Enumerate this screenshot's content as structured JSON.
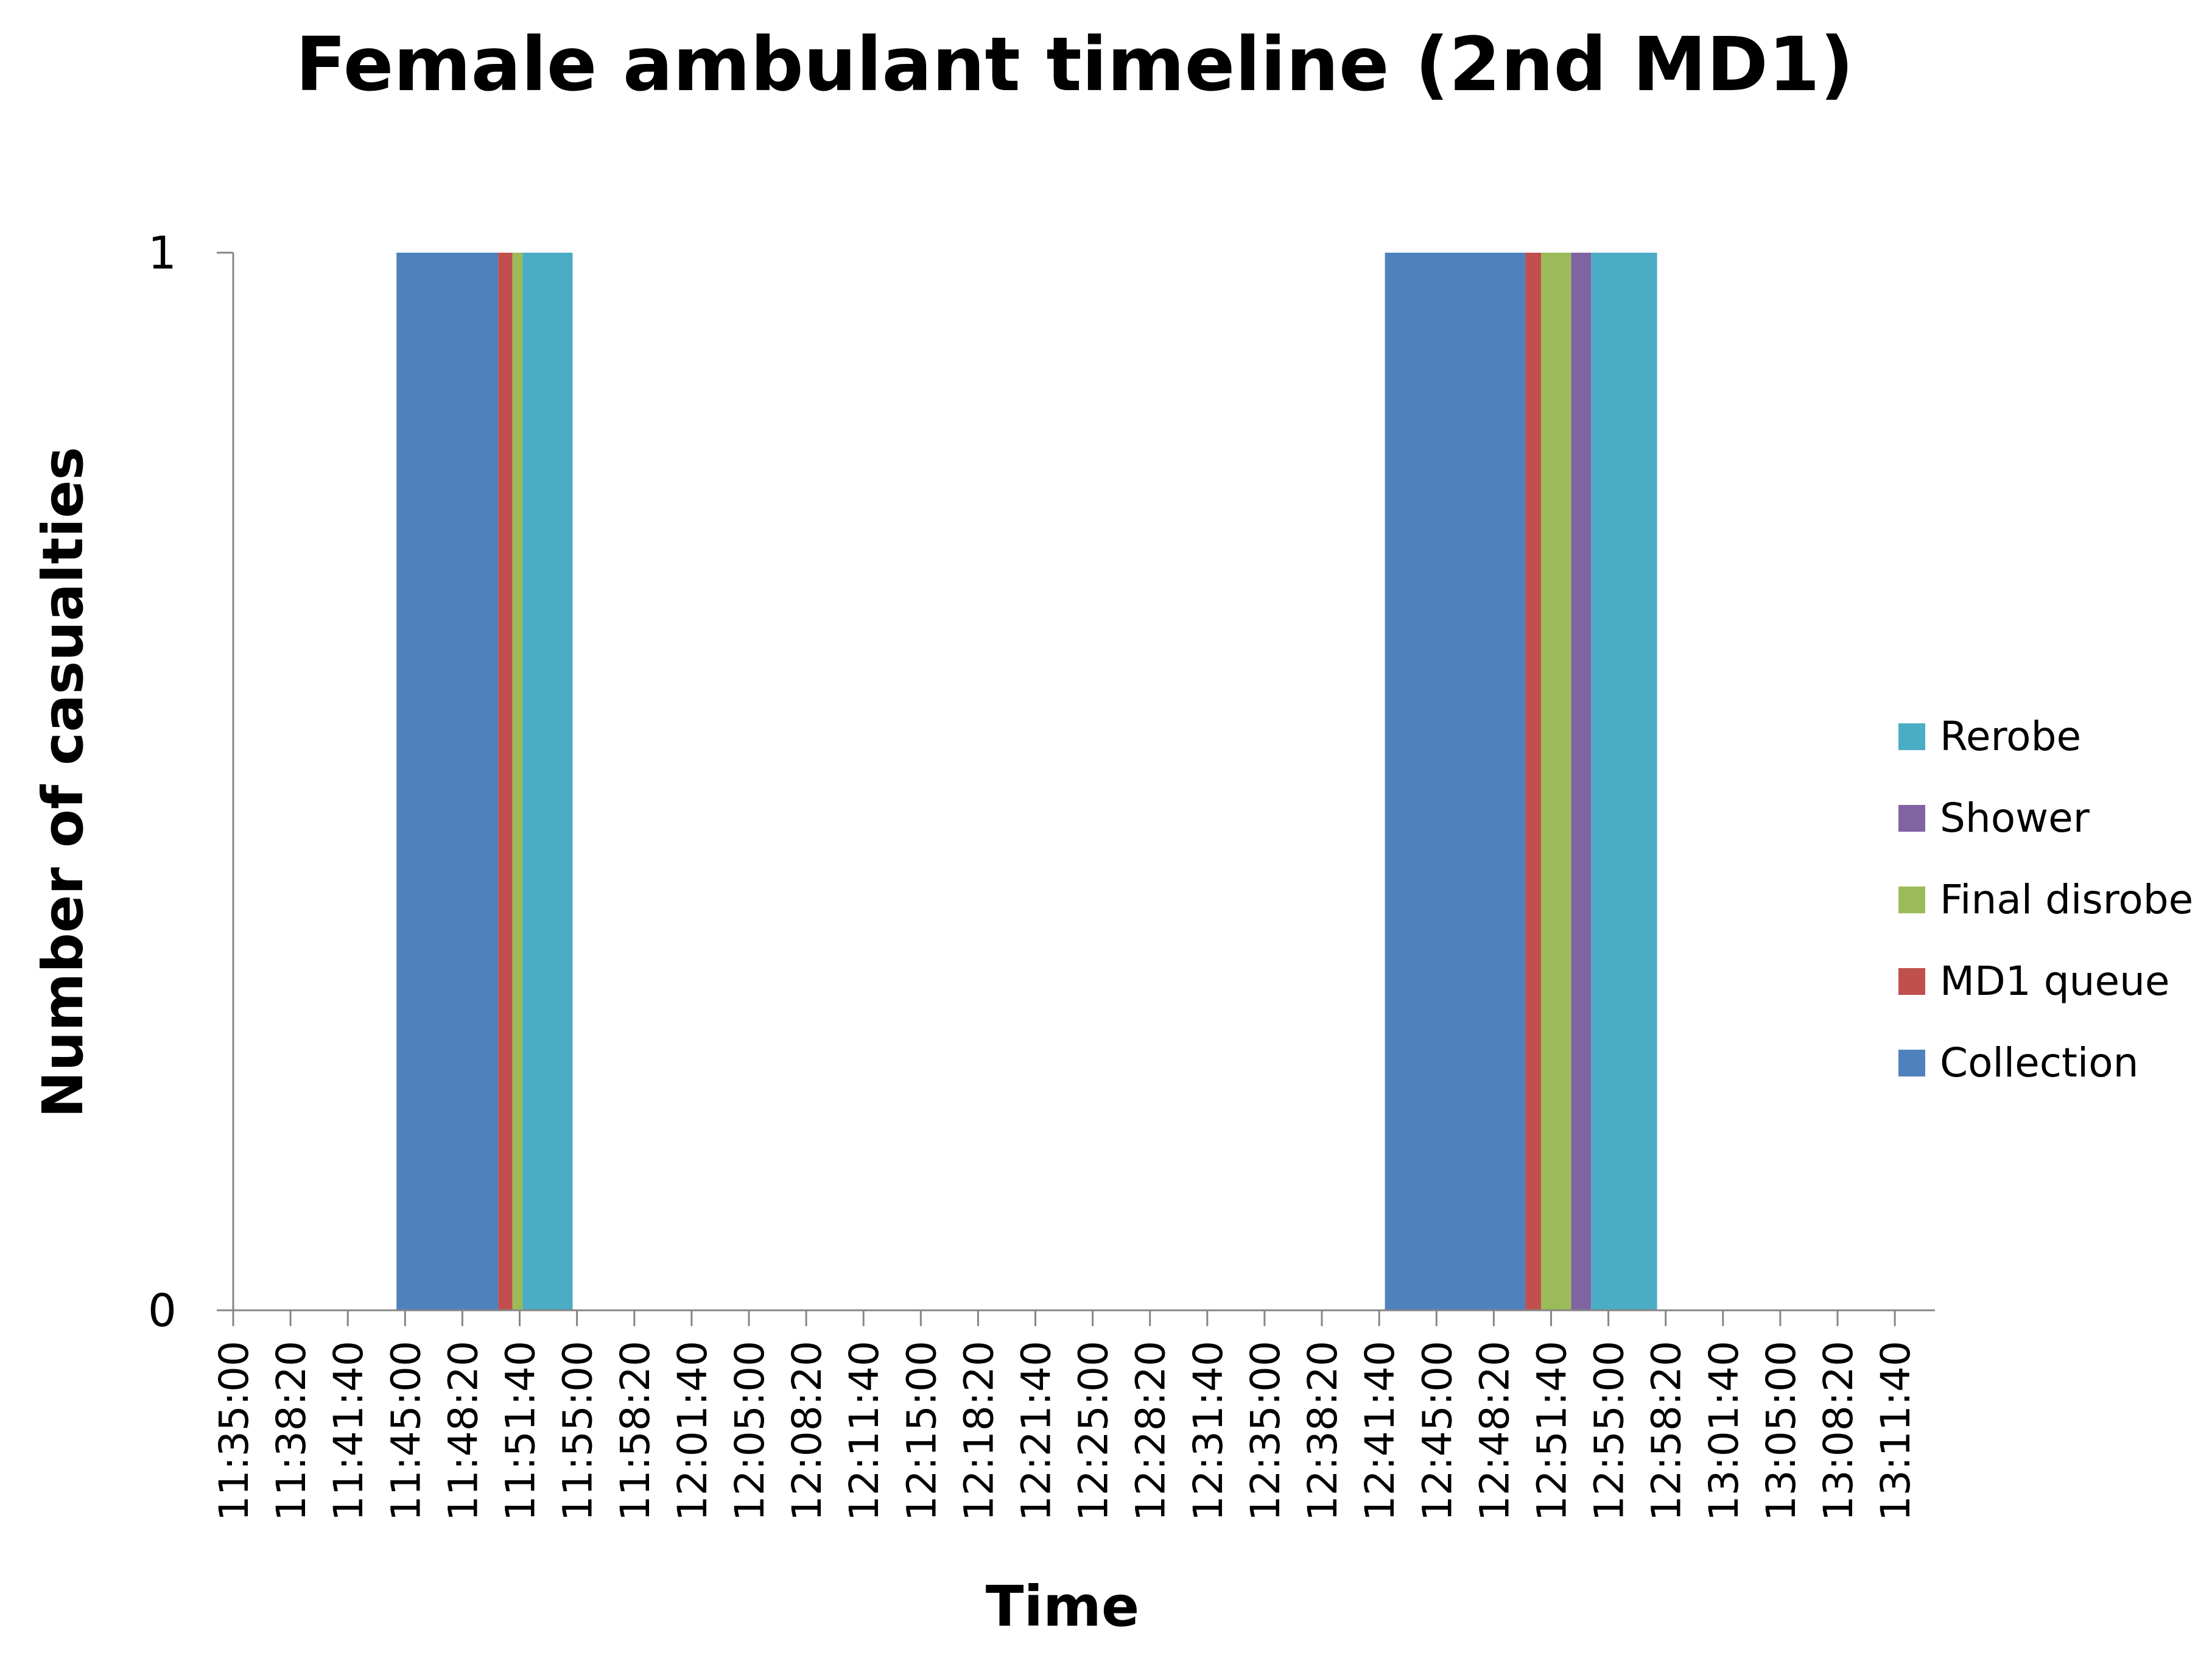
{
  "chart_data": {
    "type": "area",
    "title": "Female ambulant timeline (2nd MD1)",
    "xlabel": "Time",
    "ylabel": "Number of casualties",
    "ylim": [
      0,
      1
    ],
    "yticks": [
      "0",
      "1"
    ],
    "x_range_seconds": [
      41700,
      47640
    ],
    "x_tick_labels": [
      "11:35:00",
      "11:38:20",
      "11:41:40",
      "11:45:00",
      "11:48:20",
      "11:51:40",
      "11:55:00",
      "11:58:20",
      "12:01:40",
      "12:05:00",
      "12:08:20",
      "12:11:40",
      "12:15:00",
      "12:18:20",
      "12:21:40",
      "12:25:00",
      "12:28:20",
      "12:31:40",
      "12:35:00",
      "12:38:20",
      "12:41:40",
      "12:45:00",
      "12:48:20",
      "12:51:40",
      "12:55:00",
      "12:58:20",
      "13:01:40",
      "13:05:00",
      "13:08:20",
      "13:11:40"
    ],
    "legend_position": "right",
    "series": [
      {
        "name": "Rerobe",
        "color": "#4BACC6",
        "segments": [
          [
            42710,
            42885
          ],
          [
            46440,
            46670
          ]
        ]
      },
      {
        "name": "Shower",
        "color": "#8064A2",
        "segments": [
          [
            46370,
            46440
          ]
        ]
      },
      {
        "name": "Final disrobe",
        "color": "#9BBB59",
        "segments": [
          [
            42675,
            42710
          ],
          [
            46265,
            46370
          ]
        ]
      },
      {
        "name": "MD1 queue",
        "color": "#C0504D",
        "segments": [
          [
            42625,
            42675
          ],
          [
            46210,
            46265
          ]
        ]
      },
      {
        "name": "Collection",
        "color": "#4F81BD",
        "segments": [
          [
            42270,
            42625
          ],
          [
            45720,
            46210
          ]
        ]
      }
    ]
  }
}
